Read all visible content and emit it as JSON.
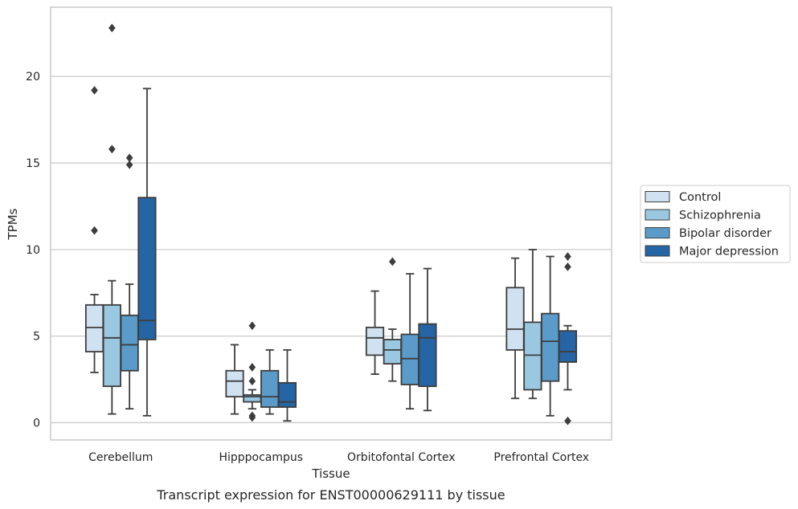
{
  "chart_data": {
    "type": "box",
    "caption": "Transcript expression for ENST00000629111 by tissue",
    "xlabel": "Tissue",
    "ylabel": "TPMs",
    "ylim": [
      -1,
      24
    ],
    "yticks": [
      0,
      5,
      10,
      15,
      20
    ],
    "grid": "horizontal",
    "legend_position": "right",
    "categories": [
      "Cerebellum",
      "Hipppocampus",
      "Orbitofontal Cortex",
      "Prefrontal Cortex"
    ],
    "series": [
      {
        "name": "Control",
        "color": "#d0e1f2",
        "boxes": [
          {
            "whisker_low": 2.9,
            "q1": 4.1,
            "median": 5.5,
            "q3": 6.8,
            "whisker_high": 7.4,
            "outliers": [
              11.1,
              19.2
            ]
          },
          {
            "whisker_low": 0.5,
            "q1": 1.5,
            "median": 2.4,
            "q3": 3.0,
            "whisker_high": 4.5,
            "outliers": []
          },
          {
            "whisker_low": 2.8,
            "q1": 3.9,
            "median": 4.9,
            "q3": 5.5,
            "whisker_high": 7.6,
            "outliers": []
          },
          {
            "whisker_low": 1.4,
            "q1": 4.2,
            "median": 5.4,
            "q3": 7.8,
            "whisker_high": 9.5,
            "outliers": []
          }
        ]
      },
      {
        "name": "Schizophrenia",
        "color": "#9ac8e0",
        "boxes": [
          {
            "whisker_low": 0.5,
            "q1": 2.1,
            "median": 4.9,
            "q3": 6.8,
            "whisker_high": 8.2,
            "outliers": [
              15.8,
              22.8
            ]
          },
          {
            "whisker_low": 0.8,
            "q1": 1.2,
            "median": 1.5,
            "q3": 1.6,
            "whisker_high": 1.9,
            "outliers": [
              0.3,
              0.4,
              2.4,
              3.2,
              5.6
            ]
          },
          {
            "whisker_low": 2.4,
            "q1": 3.4,
            "median": 4.2,
            "q3": 4.8,
            "whisker_high": 5.4,
            "outliers": [
              9.3
            ]
          },
          {
            "whisker_low": 1.4,
            "q1": 1.9,
            "median": 3.9,
            "q3": 5.8,
            "whisker_high": 10.0,
            "outliers": []
          }
        ]
      },
      {
        "name": "Bipolar disorder",
        "color": "#5a9bc9",
        "boxes": [
          {
            "whisker_low": 0.8,
            "q1": 3.0,
            "median": 4.5,
            "q3": 6.2,
            "whisker_high": 8.0,
            "outliers": [
              14.9,
              15.3
            ]
          },
          {
            "whisker_low": 0.5,
            "q1": 0.9,
            "median": 1.5,
            "q3": 3.0,
            "whisker_high": 4.2,
            "outliers": []
          },
          {
            "whisker_low": 0.8,
            "q1": 2.2,
            "median": 3.7,
            "q3": 5.1,
            "whisker_high": 8.6,
            "outliers": []
          },
          {
            "whisker_low": 0.4,
            "q1": 2.4,
            "median": 4.7,
            "q3": 6.3,
            "whisker_high": 9.6,
            "outliers": []
          }
        ]
      },
      {
        "name": "Major depression",
        "color": "#2565a6",
        "boxes": [
          {
            "whisker_low": 0.4,
            "q1": 4.8,
            "median": 5.9,
            "q3": 13.0,
            "whisker_high": 19.3,
            "outliers": []
          },
          {
            "whisker_low": 0.1,
            "q1": 0.9,
            "median": 1.2,
            "q3": 2.3,
            "whisker_high": 4.2,
            "outliers": []
          },
          {
            "whisker_low": 0.7,
            "q1": 2.1,
            "median": 4.9,
            "q3": 5.7,
            "whisker_high": 8.9,
            "outliers": []
          },
          {
            "whisker_low": 1.9,
            "q1": 3.5,
            "median": 4.1,
            "q3": 5.3,
            "whisker_high": 5.6,
            "outliers": [
              0.1,
              9.0,
              9.6
            ]
          }
        ]
      }
    ]
  }
}
